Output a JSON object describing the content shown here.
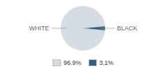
{
  "chart_data": {
    "type": "pie",
    "categories": [
      "WHITE",
      "BLACK"
    ],
    "values": [
      96.9,
      3.1
    ],
    "colors": [
      "#d6dce4",
      "#34607f"
    ],
    "value_labels": [
      "96.9%",
      "3.1%"
    ],
    "legend": "bottom"
  }
}
